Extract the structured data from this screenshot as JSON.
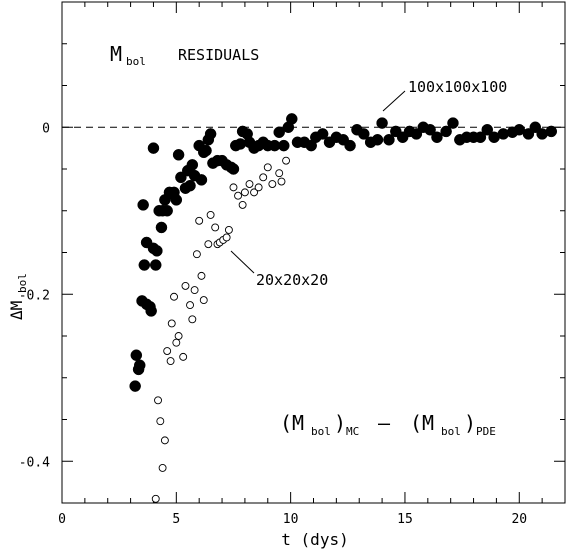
{
  "chart_data": {
    "type": "scatter",
    "title": "",
    "xlabel": "t (dys)",
    "ylabel": "ΔM_bol",
    "xlim": [
      0,
      22
    ],
    "ylim": [
      -0.45,
      0.15
    ],
    "x_ticks": [
      0,
      5,
      10,
      15,
      20
    ],
    "y_ticks": [
      0,
      -0.2,
      -0.4
    ],
    "x_tick_labels": [
      "0",
      "5",
      "10",
      "15",
      "20"
    ],
    "y_tick_labels": [
      "0",
      "-0.2",
      "-0.4"
    ],
    "reference_line": {
      "y": 0,
      "style": "dashed"
    },
    "grid": false,
    "annotations": {
      "header": "M",
      "header_sub": "bol",
      "header_word": "RESIDUALS",
      "label_100": "100x100x100",
      "label_20": "20x20x20",
      "formula": {
        "open1": "(M",
        "sub1": "bol",
        "close1": ")",
        "subMC": "MC",
        "minus": "–",
        "open2": "(M",
        "sub2": "bol",
        "close2": ")",
        "subPDE": "PDE"
      },
      "ylabel_main": "ΔM",
      "ylabel_sub": "bol"
    },
    "series": [
      {
        "name": "100x100x100",
        "marker": "filled-circle",
        "points": [
          [
            3.2,
            -0.31
          ],
          [
            3.25,
            -0.273
          ],
          [
            3.35,
            -0.29
          ],
          [
            3.4,
            -0.285
          ],
          [
            3.5,
            -0.208
          ],
          [
            3.55,
            -0.093
          ],
          [
            3.6,
            -0.165
          ],
          [
            3.7,
            -0.138
          ],
          [
            3.7,
            -0.212
          ],
          [
            3.85,
            -0.215
          ],
          [
            3.9,
            -0.22
          ],
          [
            4.0,
            -0.145
          ],
          [
            4.0,
            -0.025
          ],
          [
            4.1,
            -0.165
          ],
          [
            4.15,
            -0.148
          ],
          [
            4.25,
            -0.1
          ],
          [
            4.35,
            -0.12
          ],
          [
            4.4,
            -0.1
          ],
          [
            4.5,
            -0.087
          ],
          [
            4.6,
            -0.1
          ],
          [
            4.7,
            -0.078
          ],
          [
            4.8,
            -0.08
          ],
          [
            4.9,
            -0.078
          ],
          [
            5.0,
            -0.087
          ],
          [
            5.1,
            -0.033
          ],
          [
            5.2,
            -0.06
          ],
          [
            5.4,
            -0.073
          ],
          [
            5.5,
            -0.052
          ],
          [
            5.6,
            -0.07
          ],
          [
            5.7,
            -0.045
          ],
          [
            5.8,
            -0.058
          ],
          [
            6.0,
            -0.022
          ],
          [
            6.1,
            -0.063
          ],
          [
            6.2,
            -0.03
          ],
          [
            6.3,
            -0.028
          ],
          [
            6.4,
            -0.015
          ],
          [
            6.5,
            -0.008
          ],
          [
            6.6,
            -0.043
          ],
          [
            6.8,
            -0.04
          ],
          [
            7.0,
            -0.04
          ],
          [
            7.2,
            -0.045
          ],
          [
            7.4,
            -0.048
          ],
          [
            7.5,
            -0.05
          ],
          [
            7.6,
            -0.022
          ],
          [
            7.8,
            -0.02
          ],
          [
            7.9,
            -0.005
          ],
          [
            8.1,
            -0.008
          ],
          [
            8.2,
            -0.018
          ],
          [
            8.4,
            -0.025
          ],
          [
            8.6,
            -0.022
          ],
          [
            8.8,
            -0.018
          ],
          [
            9.0,
            -0.022
          ],
          [
            9.3,
            -0.022
          ],
          [
            9.5,
            -0.006
          ],
          [
            9.7,
            -0.022
          ],
          [
            9.9,
            0.0
          ],
          [
            10.05,
            0.01
          ],
          [
            10.3,
            -0.018
          ],
          [
            10.6,
            -0.018
          ],
          [
            10.9,
            -0.022
          ],
          [
            11.1,
            -0.012
          ],
          [
            11.4,
            -0.008
          ],
          [
            11.7,
            -0.018
          ],
          [
            12.0,
            -0.012
          ],
          [
            12.3,
            -0.015
          ],
          [
            12.6,
            -0.022
          ],
          [
            12.9,
            -0.003
          ],
          [
            13.2,
            -0.008
          ],
          [
            13.5,
            -0.018
          ],
          [
            13.8,
            -0.015
          ],
          [
            14.0,
            0.005
          ],
          [
            14.3,
            -0.015
          ],
          [
            14.6,
            -0.005
          ],
          [
            14.9,
            -0.012
          ],
          [
            15.2,
            -0.005
          ],
          [
            15.5,
            -0.008
          ],
          [
            15.8,
            0.0
          ],
          [
            16.1,
            -0.003
          ],
          [
            16.4,
            -0.012
          ],
          [
            16.8,
            -0.005
          ],
          [
            17.1,
            0.005
          ],
          [
            17.4,
            -0.015
          ],
          [
            17.7,
            -0.012
          ],
          [
            18.0,
            -0.012
          ],
          [
            18.3,
            -0.012
          ],
          [
            18.6,
            -0.003
          ],
          [
            18.9,
            -0.012
          ],
          [
            19.3,
            -0.008
          ],
          [
            19.7,
            -0.006
          ],
          [
            20.0,
            -0.003
          ],
          [
            20.4,
            -0.008
          ],
          [
            20.7,
            0.0
          ],
          [
            21.0,
            -0.008
          ],
          [
            21.4,
            -0.005
          ]
        ]
      },
      {
        "name": "20x20x20",
        "marker": "open-circle",
        "points": [
          [
            4.1,
            -0.445
          ],
          [
            4.2,
            -0.327
          ],
          [
            4.3,
            -0.352
          ],
          [
            4.4,
            -0.408
          ],
          [
            4.5,
            -0.375
          ],
          [
            4.6,
            -0.268
          ],
          [
            4.75,
            -0.28
          ],
          [
            4.8,
            -0.235
          ],
          [
            4.9,
            -0.203
          ],
          [
            5.0,
            -0.258
          ],
          [
            5.1,
            -0.25
          ],
          [
            5.3,
            -0.275
          ],
          [
            5.4,
            -0.19
          ],
          [
            5.6,
            -0.213
          ],
          [
            5.7,
            -0.23
          ],
          [
            5.8,
            -0.195
          ],
          [
            5.9,
            -0.152
          ],
          [
            6.0,
            -0.112
          ],
          [
            6.1,
            -0.178
          ],
          [
            6.2,
            -0.207
          ],
          [
            6.4,
            -0.14
          ],
          [
            6.5,
            -0.105
          ],
          [
            6.7,
            -0.12
          ],
          [
            6.8,
            -0.14
          ],
          [
            6.9,
            -0.138
          ],
          [
            7.05,
            -0.135
          ],
          [
            7.2,
            -0.132
          ],
          [
            7.3,
            -0.123
          ],
          [
            7.5,
            -0.072
          ],
          [
            7.7,
            -0.082
          ],
          [
            7.9,
            -0.093
          ],
          [
            8.0,
            -0.078
          ],
          [
            8.2,
            -0.068
          ],
          [
            8.4,
            -0.078
          ],
          [
            8.6,
            -0.072
          ],
          [
            8.8,
            -0.06
          ],
          [
            9.0,
            -0.048
          ],
          [
            9.2,
            -0.068
          ],
          [
            9.5,
            -0.055
          ],
          [
            9.6,
            -0.065
          ],
          [
            9.8,
            -0.04
          ]
        ]
      }
    ]
  }
}
